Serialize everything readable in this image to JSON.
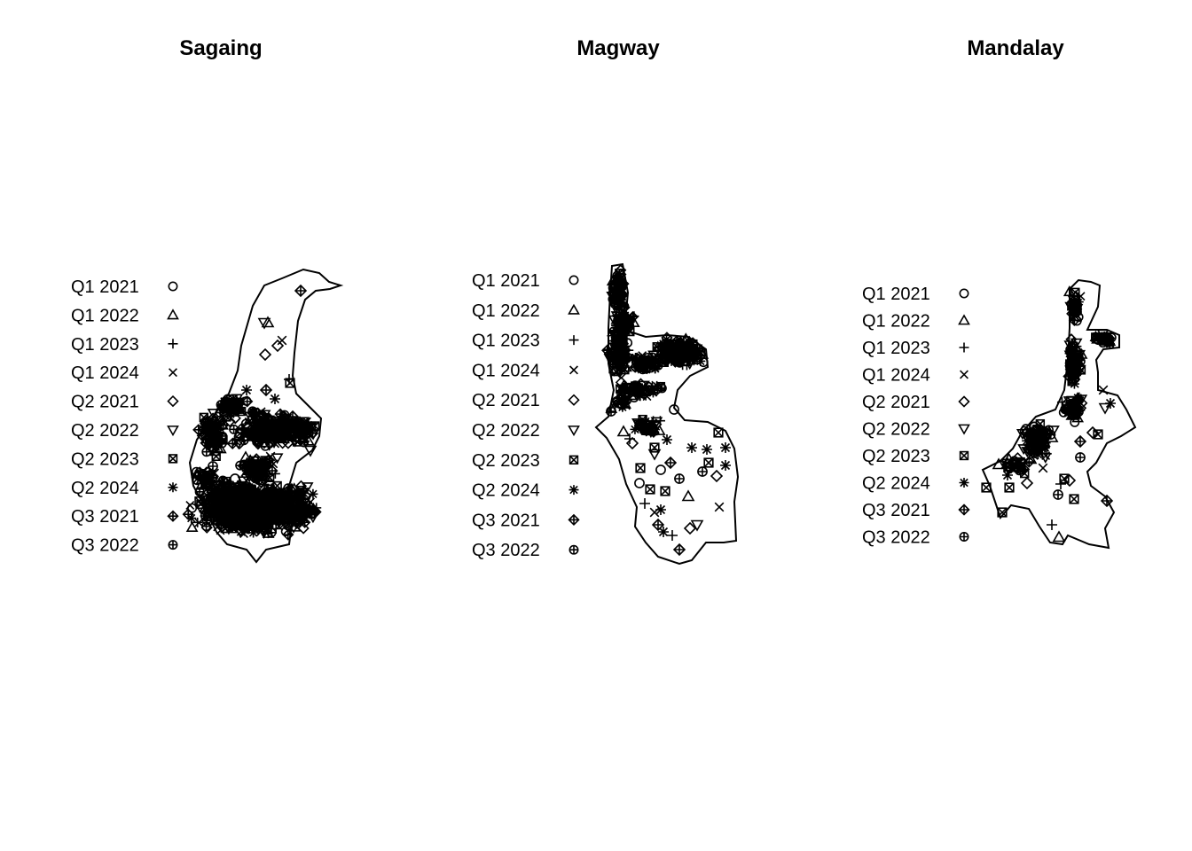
{
  "panels": [
    {
      "title": "Sagaing",
      "legend": [
        "Q1 2021",
        "Q1 2022",
        "Q1 2023",
        "Q1 2024",
        "Q2 2021",
        "Q2 2022",
        "Q2 2023",
        "Q2 2024",
        "Q3 2021",
        "Q3 2022"
      ]
    },
    {
      "title": "Magway",
      "legend": [
        "Q1 2021",
        "Q1 2022",
        "Q1 2023",
        "Q1 2024",
        "Q2 2021",
        "Q2 2022",
        "Q2 2023",
        "Q2 2024",
        "Q3 2021",
        "Q3 2022"
      ]
    },
    {
      "title": "Mandalay",
      "legend": [
        "Q1 2021",
        "Q1 2022",
        "Q1 2023",
        "Q1 2024",
        "Q2 2021",
        "Q2 2022",
        "Q2 2023",
        "Q2 2024",
        "Q3 2021",
        "Q3 2022"
      ]
    }
  ],
  "symbols": [
    "circle-icon",
    "triangle-icon",
    "plus-icon",
    "cross-icon",
    "diamond-icon",
    "triangle-down-icon",
    "boxed-cross-icon",
    "asterisk-icon",
    "diamond-plus-icon",
    "circle-plus-icon"
  ],
  "colors": {
    "ink": "#000000",
    "background": "#ffffff"
  }
}
